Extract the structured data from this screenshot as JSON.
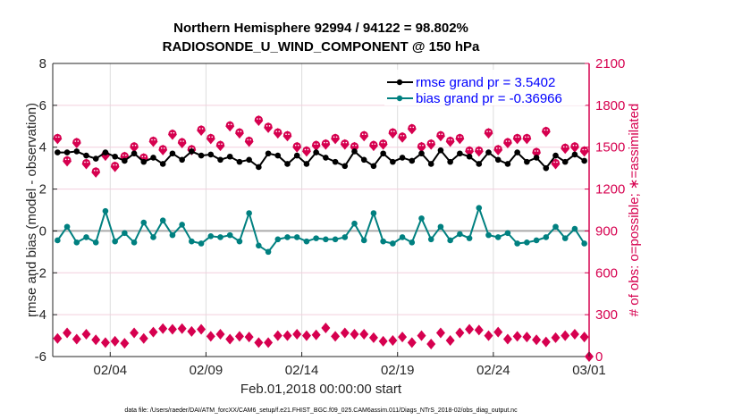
{
  "chart_data": {
    "type": "line",
    "title": [
      "Northern Hemisphere 92994 / 94122 = 98.802%",
      "RADIOSONDE_U_WIND_COMPONENT @ 150 hPa"
    ],
    "xlabel": "Feb.01,2018 00:00:00 start",
    "ylabel": "rmse and bias (model - observation)",
    "ylabel_right": "# of obs: o=possible; ∗=assimilated",
    "footnote": "data file: /Users/raeder/DAI/ATM_forcXX/CAM6_setup/f.e21.FHIST_BGC.f09_025.CAM6assim.011/Diags_NTrS_2018-02/obs_diag_output.nc",
    "xlim_days": [
      0,
      28
    ],
    "x_ticks": [
      {
        "day": 3,
        "label": "02/04"
      },
      {
        "day": 8,
        "label": "02/09"
      },
      {
        "day": 13,
        "label": "02/14"
      },
      {
        "day": 18,
        "label": "02/19"
      },
      {
        "day": 23,
        "label": "02/24"
      },
      {
        "day": 28,
        "label": "03/01"
      }
    ],
    "ylim": [
      -6,
      8
    ],
    "y_ticks": [
      "8",
      "6",
      "4",
      "2",
      "0",
      "-2",
      "-4",
      "-6"
    ],
    "y_tick_values": [
      8,
      6,
      4,
      2,
      0,
      -2,
      -4,
      -6
    ],
    "ylim_right": [
      0,
      2100
    ],
    "y_ticks_right": [
      "2100",
      "1800",
      "1500",
      "1200",
      "900",
      "600",
      "300",
      "0"
    ],
    "y_tick_values_right": [
      2100,
      1800,
      1500,
      1200,
      900,
      600,
      300,
      0
    ],
    "grid": true,
    "legend_placement": "top-right",
    "legend": [
      {
        "label": "rmse grand pr = 3.5402",
        "color": "#000000"
      },
      {
        "label": "bias grand pr = -0.36966",
        "color": "#008080"
      }
    ],
    "colors": {
      "rmse": "#000000",
      "bias": "#008080",
      "obs": "#d6004f",
      "zero_line": "#aaaaaa"
    },
    "x_start_day": 0.25,
    "x_step_day": 0.5,
    "series": [
      {
        "name": "rmse",
        "values": [
          3.75,
          3.75,
          3.8,
          3.6,
          3.45,
          3.75,
          3.55,
          3.35,
          3.7,
          3.3,
          3.5,
          3.2,
          3.7,
          3.4,
          3.8,
          3.6,
          3.65,
          3.4,
          3.55,
          3.3,
          3.4,
          3.05,
          3.7,
          3.6,
          3.2,
          3.6,
          3.2,
          3.75,
          3.5,
          3.3,
          3.1,
          3.8,
          3.4,
          3.1,
          3.7,
          3.3,
          3.5,
          3.35,
          3.7,
          3.2,
          3.85,
          3.3,
          3.7,
          3.55,
          3.2,
          3.75,
          3.4,
          3.2,
          3.75,
          3.3,
          3.5,
          3.0,
          3.6,
          3.3,
          3.65,
          3.35
        ]
      },
      {
        "name": "bias",
        "values": [
          -0.45,
          0.2,
          -0.55,
          -0.3,
          -0.55,
          0.95,
          -0.5,
          -0.1,
          -0.55,
          0.4,
          -0.3,
          0.5,
          -0.2,
          0.3,
          -0.5,
          -0.6,
          -0.25,
          -0.3,
          -0.2,
          -0.5,
          0.85,
          -0.7,
          -1.0,
          -0.4,
          -0.3,
          -0.3,
          -0.5,
          -0.35,
          -0.4,
          -0.4,
          -0.3,
          0.35,
          -0.45,
          0.85,
          -0.5,
          -0.6,
          -0.3,
          -0.55,
          0.6,
          -0.4,
          0.2,
          -0.45,
          -0.15,
          -0.35,
          1.1,
          -0.2,
          -0.3,
          -0.1,
          -0.6,
          -0.55,
          -0.45,
          -0.3,
          0.2,
          -0.35,
          0.1,
          -0.6
        ]
      },
      {
        "name": "obs_possible",
        "values": [
          1560,
          1400,
          1530,
          1380,
          1320,
          1440,
          1360,
          1430,
          1500,
          1420,
          1540,
          1480,
          1590,
          1530,
          1480,
          1620,
          1560,
          1510,
          1650,
          1600,
          1540,
          1690,
          1640,
          1600,
          1580,
          1500,
          1470,
          1510,
          1520,
          1560,
          1520,
          1500,
          1580,
          1510,
          1520,
          1600,
          1570,
          1630,
          1500,
          1520,
          1580,
          1540,
          1560,
          1470,
          1470,
          1600,
          1480,
          1530,
          1560,
          1560,
          1460,
          1610,
          1380,
          1490,
          1500,
          1470
        ]
      },
      {
        "name": "obs_assimilated",
        "values": [
          130,
          170,
          125,
          160,
          120,
          100,
          110,
          95,
          170,
          130,
          175,
          200,
          195,
          200,
          180,
          195,
          145,
          160,
          125,
          145,
          140,
          100,
          100,
          150,
          150,
          160,
          150,
          155,
          205,
          145,
          170,
          160,
          160,
          135,
          110,
          115,
          140,
          100,
          150,
          90,
          170,
          115,
          170,
          195,
          190,
          150,
          175,
          125,
          145,
          140,
          120,
          105,
          135,
          150,
          160,
          140
        ]
      }
    ]
  }
}
